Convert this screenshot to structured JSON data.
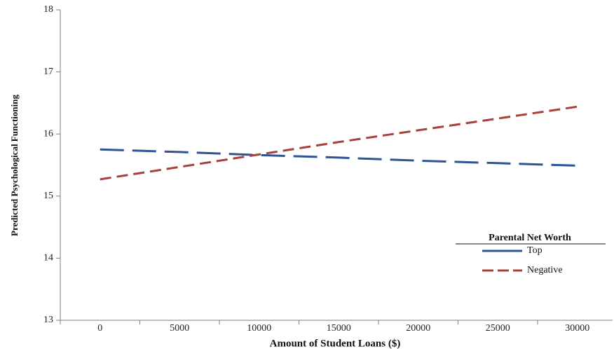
{
  "chart_data": {
    "type": "line",
    "title": "",
    "xlabel": "Amount of Student Loans ($)",
    "ylabel": "Predicted Psychological Functioning",
    "x": [
      0,
      5000,
      10000,
      15000,
      20000,
      25000,
      30000
    ],
    "x_tick_labels": [
      "0",
      "5000",
      "10000",
      "15000",
      "20000",
      "25000",
      "30000"
    ],
    "y_tick_labels": [
      "13",
      "14",
      "15",
      "16",
      "17",
      "18"
    ],
    "y_ticks": [
      13,
      14,
      15,
      16,
      17,
      18
    ],
    "ylim": [
      13,
      18
    ],
    "grid": false,
    "legend": {
      "title": "Parental Net Worth",
      "placement": "right-middle"
    },
    "series": [
      {
        "name": "Top",
        "color": "#2d5494",
        "dash": "long-dash",
        "values": [
          15.75,
          15.71,
          15.66,
          15.62,
          15.57,
          15.53,
          15.49
        ]
      },
      {
        "name": "Negative",
        "color": "#a8403c",
        "dash": "dash",
        "values": [
          15.27,
          15.47,
          15.67,
          15.87,
          16.06,
          16.25,
          16.44
        ]
      }
    ]
  }
}
